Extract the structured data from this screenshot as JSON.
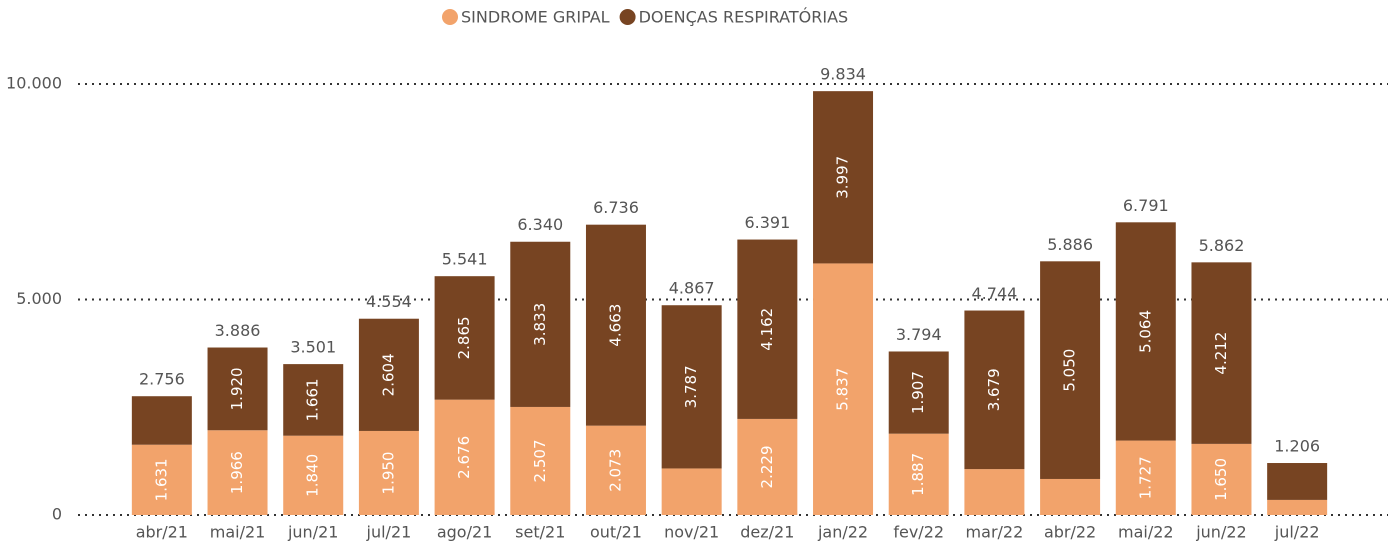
{
  "chart_data": {
    "type": "stacked_bar",
    "categories": [
      "abr/21",
      "mai/21",
      "jun/21",
      "jul/21",
      "ago/21",
      "set/21",
      "out/21",
      "nov/21",
      "dez/21",
      "jan/22",
      "fev/22",
      "mar/22",
      "abr/22",
      "mai/22",
      "jun/22",
      "jul/22"
    ],
    "series": [
      {
        "name": "SINDROME GRIPAL",
        "color": "#f2a36b",
        "values": [
          1631,
          1966,
          1840,
          1950,
          2676,
          2507,
          2073,
          1080,
          2229,
          5837,
          1887,
          1065,
          836,
          1727,
          1650,
          350
        ],
        "value_labels": [
          "1.631",
          "1.966",
          "1.840",
          "1.950",
          "2.676",
          "2.507",
          "2.073",
          null,
          "2.229",
          "5.837",
          "1.887",
          null,
          null,
          "1.727",
          "1.650",
          null
        ]
      },
      {
        "name": "DOENÇAS RESPIRATÓRIAS",
        "color": "#774422",
        "values": [
          1125,
          1920,
          1661,
          2604,
          2865,
          3833,
          4663,
          3787,
          4162,
          3997,
          1907,
          3679,
          5050,
          5064,
          4212,
          856
        ],
        "value_labels": [
          null,
          "1.920",
          "1.661",
          "2.604",
          "2.865",
          "3.833",
          "4.663",
          "3.787",
          "4.162",
          "3.997",
          "1.907",
          "3.679",
          "5.050",
          "5.064",
          "4.212",
          null
        ]
      }
    ],
    "totals": {
      "values": [
        2756,
        3886,
        3501,
        4554,
        5541,
        6340,
        6736,
        4867,
        6391,
        9834,
        3794,
        4744,
        5886,
        6791,
        5862,
        1206
      ],
      "value_labels": [
        "2.756",
        "3.886",
        "3.501",
        "4.554",
        "5.541",
        "6.340",
        "6.736",
        "4.867",
        "6.391",
        "9.834",
        "3.794",
        "4.744",
        "5.886",
        "6.791",
        "5.862",
        "1.206"
      ]
    },
    "ylim": [
      0,
      10000
    ],
    "yticks": [
      0,
      {
        "value": 5000,
        "label": "5.000"
      },
      {
        "value": 10000,
        "label": "10.000"
      }
    ],
    "grid": true,
    "legend": "top"
  }
}
